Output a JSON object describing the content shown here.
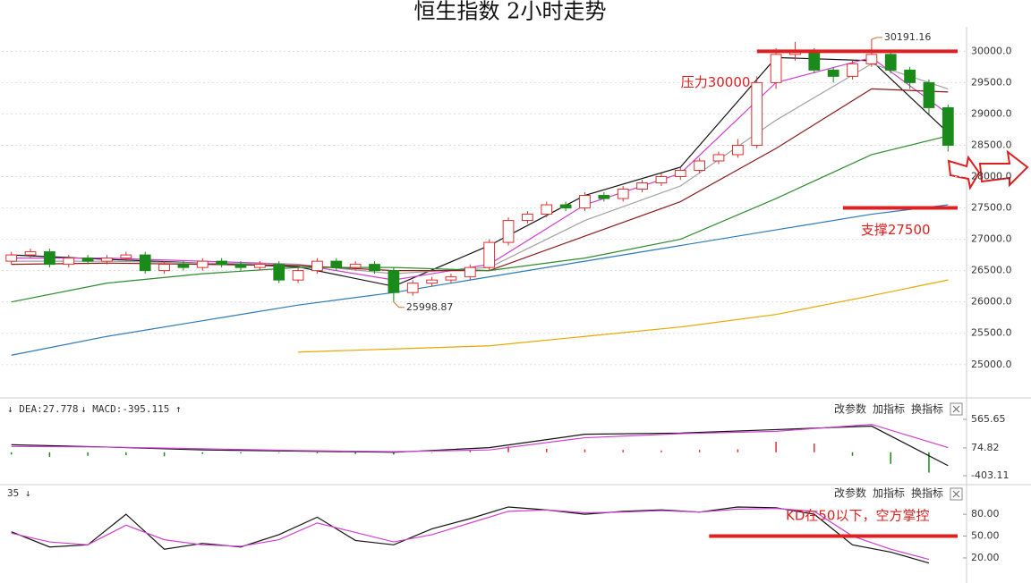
{
  "chart_data": [
    {
      "type": "candlestick",
      "title": "恒生指数 2小时走势",
      "x": [
        0,
        1,
        2,
        3,
        4,
        5,
        6,
        7,
        8,
        9,
        10,
        11,
        12,
        13,
        14,
        15,
        16,
        17,
        18,
        19,
        20,
        21,
        22,
        23,
        24,
        25,
        26,
        27,
        28,
        29,
        30,
        31,
        32,
        33,
        34,
        35,
        36,
        37,
        38,
        39,
        40,
        41,
        42,
        43,
        44,
        45,
        46,
        47,
        48,
        49
      ],
      "open": [
        26650,
        26750,
        26800,
        26600,
        26700,
        26650,
        26700,
        26750,
        26500,
        26600,
        26550,
        26650,
        26600,
        26550,
        26600,
        26350,
        26500,
        26650,
        26550,
        26600,
        26500,
        26150,
        26300,
        26350,
        26400,
        26550,
        26950,
        27300,
        27400,
        27550,
        27500,
        27700,
        27650,
        27800,
        27900,
        28000,
        28100,
        28250,
        28350,
        28500,
        29500,
        29950,
        30000,
        29700,
        29600,
        29800,
        29950,
        29700,
        29500,
        29100
      ],
      "high": [
        26800,
        26850,
        26850,
        26750,
        26750,
        26750,
        26800,
        26800,
        26650,
        26650,
        26700,
        26700,
        26650,
        26650,
        26650,
        26550,
        26700,
        26700,
        26650,
        26650,
        26550,
        26350,
        26400,
        26450,
        26600,
        27000,
        27350,
        27450,
        27600,
        27600,
        27750,
        27750,
        27850,
        27950,
        28050,
        28150,
        28300,
        28400,
        28600,
        29600,
        30050,
        30150,
        30050,
        29750,
        29850,
        30191.16,
        30000,
        29750,
        29550,
        29150
      ],
      "low": [
        26600,
        26700,
        26550,
        26550,
        26600,
        26600,
        26650,
        26450,
        26450,
        26500,
        26500,
        26550,
        26500,
        26500,
        26300,
        26300,
        26450,
        26500,
        26500,
        26450,
        25998.87,
        26100,
        26250,
        26300,
        26350,
        26500,
        26900,
        27250,
        27350,
        27450,
        27450,
        27600,
        27600,
        27750,
        27850,
        27950,
        28050,
        28200,
        28300,
        28450,
        29400,
        29850,
        29650,
        29500,
        29550,
        29750,
        29650,
        29400,
        29000,
        28400
      ],
      "close": [
        26750,
        26800,
        26600,
        26700,
        26650,
        26700,
        26750,
        26500,
        26600,
        26550,
        26650,
        26600,
        26550,
        26600,
        26350,
        26500,
        26650,
        26550,
        26600,
        26500,
        26150,
        26300,
        26350,
        26400,
        26550,
        26950,
        27300,
        27400,
        27550,
        27500,
        27700,
        27650,
        27800,
        27900,
        28000,
        28100,
        28250,
        28350,
        28500,
        29500,
        29950,
        30000,
        29700,
        29600,
        29800,
        29950,
        29700,
        29500,
        29100,
        28500
      ],
      "up_color": "#e03030",
      "down_color": "#1a8a1a",
      "xlim": [
        -0.5,
        49.5
      ],
      "ylim": [
        24540,
        30390
      ],
      "yticks": [
        {
          "value": 25000,
          "label": "25000.0"
        },
        {
          "value": 25500,
          "label": "25500.0"
        },
        {
          "value": 26000,
          "label": "26000.0"
        },
        {
          "value": 26500,
          "label": "26500.0"
        },
        {
          "value": 27000,
          "label": "27000.0"
        },
        {
          "value": 27500,
          "label": "27500.0"
        },
        {
          "value": 28000,
          "label": "28000.0"
        },
        {
          "value": 28500,
          "label": "28500.0"
        },
        {
          "value": 29000,
          "label": "29000.0"
        },
        {
          "value": 29500,
          "label": "29500.0"
        },
        {
          "value": 30000,
          "label": "30000.0"
        }
      ],
      "grid": true,
      "ma_x": [
        0,
        5,
        10,
        15,
        20,
        25,
        30,
        35,
        40,
        45,
        49
      ],
      "ma_series": [
        {
          "color": "#111111",
          "values": [
            26750,
            26680,
            26620,
            26560,
            26250,
            26900,
            27700,
            28150,
            29900,
            29850,
            28700
          ]
        },
        {
          "color": "#d040d0",
          "values": [
            26700,
            26700,
            26650,
            26600,
            26350,
            26600,
            27550,
            28050,
            29500,
            29900,
            29000
          ]
        },
        {
          "color": "#a0a0a0",
          "values": [
            26650,
            26650,
            26620,
            26600,
            26450,
            26550,
            27300,
            27850,
            28900,
            29800,
            29400
          ]
        },
        {
          "color": "#8b1a1a",
          "values": [
            26600,
            26620,
            26600,
            26580,
            26500,
            26500,
            27050,
            27600,
            28450,
            29400,
            29350
          ]
        },
        {
          "color": "#2e8b2e",
          "values": [
            26000,
            26300,
            26450,
            26550,
            26550,
            26500,
            26700,
            27000,
            27650,
            28350,
            28650
          ]
        },
        {
          "color": "#2a7ab8",
          "values": [
            25150,
            25450,
            25700,
            25950,
            26150,
            26400,
            26650,
            26900,
            27150,
            27400,
            27550
          ]
        },
        {
          "color": "#e8a800",
          "values": [
            null,
            null,
            null,
            25200,
            25250,
            25300,
            25450,
            25600,
            25800,
            26100,
            26350
          ]
        }
      ],
      "annotations": [
        {
          "label": "30191.16",
          "x": 45,
          "y": 30191.16
        },
        {
          "label": "25998.87",
          "x": 20,
          "y": 25998.87
        }
      ],
      "levels": [
        {
          "label": "压力30000",
          "value": 30000,
          "from": 39,
          "to": 49.5,
          "color": "#e02020"
        },
        {
          "label": "支撑27500",
          "value": 27500,
          "from": 43.5,
          "to": 49.5,
          "color": "#e02020"
        }
      ]
    },
    {
      "type": "macd",
      "header": [
        "↓ DEA:27.778",
        "↓ MACD:-395.115 ↑"
      ],
      "buttons": [
        "改参数",
        "加指标",
        "换指标"
      ],
      "xlim": [
        -0.5,
        49.5
      ],
      "ylim": [
        -526,
        858
      ],
      "yticks": [
        565.65,
        74.82,
        -403.11
      ],
      "hist_x": [
        0,
        2,
        4,
        6,
        8,
        10,
        12,
        14,
        16,
        18,
        20,
        22,
        24,
        26,
        28,
        30,
        32,
        34,
        36,
        38,
        40,
        42,
        44,
        46,
        48
      ],
      "hist": [
        -40,
        -80,
        -60,
        -50,
        -70,
        -30,
        -20,
        -10,
        -20,
        -30,
        -40,
        -10,
        40,
        100,
        60,
        50,
        40,
        30,
        40,
        50,
        180,
        150,
        -60,
        -200,
        -350
      ],
      "up_color": "#e03030",
      "down_color": "#1a8a1a",
      "x": [
        0,
        5,
        10,
        15,
        20,
        25,
        30,
        35,
        40,
        45,
        49
      ],
      "series": [
        {
          "color": "#111111",
          "values": [
            130,
            90,
            40,
            20,
            0,
            80,
            310,
            330,
            390,
            450,
            -230
          ]
        },
        {
          "color": "#d040d0",
          "values": [
            100,
            90,
            60,
            30,
            10,
            40,
            250,
            320,
            360,
            480,
            80
          ]
        }
      ]
    },
    {
      "type": "line",
      "header": [
        "35 ↓"
      ],
      "buttons": [
        "改参数",
        "加指标",
        "换指标"
      ],
      "xlim": [
        -0.5,
        49.5
      ],
      "ylim": [
        -12,
        117
      ],
      "yticks": [
        {
          "value": 20,
          "label": "20.00"
        },
        {
          "value": 50,
          "label": "50.00"
        },
        {
          "value": 80,
          "label": "80.00"
        }
      ],
      "x": [
        0,
        2,
        4,
        6,
        8,
        10,
        12,
        14,
        16,
        18,
        20,
        22,
        24,
        26,
        28,
        30,
        32,
        34,
        36,
        38,
        40,
        42,
        44,
        46,
        48
      ],
      "series": [
        {
          "color": "#111111",
          "values": [
            56,
            35,
            38,
            80,
            32,
            40,
            35,
            52,
            76,
            44,
            38,
            60,
            74,
            90,
            86,
            80,
            84,
            86,
            83,
            90,
            89,
            80,
            38,
            28,
            13
          ]
        },
        {
          "color": "#d040d0",
          "values": [
            54,
            42,
            38,
            65,
            45,
            38,
            36,
            45,
            68,
            55,
            42,
            52,
            68,
            84,
            86,
            82,
            83,
            85,
            83,
            87,
            88,
            84,
            50,
            32,
            18
          ]
        }
      ],
      "annotation": "KD在50以下，空方掌控",
      "level": {
        "value": 50,
        "from": 36.5,
        "to": 49.5,
        "color": "#e02020"
      }
    }
  ]
}
